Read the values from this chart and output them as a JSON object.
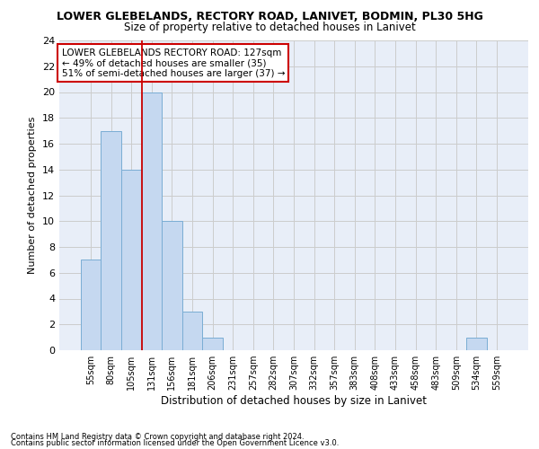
{
  "title": "LOWER GLEBELANDS, RECTORY ROAD, LANIVET, BODMIN, PL30 5HG",
  "subtitle": "Size of property relative to detached houses in Lanivet",
  "xlabel": "Distribution of detached houses by size in Lanivet",
  "ylabel": "Number of detached properties",
  "bar_color": "#c5d8f0",
  "bar_edge_color": "#7aadd4",
  "categories": [
    "55sqm",
    "80sqm",
    "105sqm",
    "131sqm",
    "156sqm",
    "181sqm",
    "206sqm",
    "231sqm",
    "257sqm",
    "282sqm",
    "307sqm",
    "332sqm",
    "357sqm",
    "383sqm",
    "408sqm",
    "433sqm",
    "458sqm",
    "483sqm",
    "509sqm",
    "534sqm",
    "559sqm"
  ],
  "values": [
    7,
    17,
    14,
    20,
    10,
    3,
    1,
    0,
    0,
    0,
    0,
    0,
    0,
    0,
    0,
    0,
    0,
    0,
    0,
    1,
    0
  ],
  "vline_x": 2.5,
  "vline_color": "#cc0000",
  "annotation_text": "LOWER GLEBELANDS RECTORY ROAD: 127sqm\n← 49% of detached houses are smaller (35)\n51% of semi-detached houses are larger (37) →",
  "annotation_box_color": "white",
  "annotation_box_edge": "#cc0000",
  "ylim": [
    0,
    24
  ],
  "yticks": [
    0,
    2,
    4,
    6,
    8,
    10,
    12,
    14,
    16,
    18,
    20,
    22,
    24
  ],
  "grid_color": "#cccccc",
  "bg_color": "#e8eef8",
  "footnote1": "Contains HM Land Registry data © Crown copyright and database right 2024.",
  "footnote2": "Contains public sector information licensed under the Open Government Licence v3.0."
}
